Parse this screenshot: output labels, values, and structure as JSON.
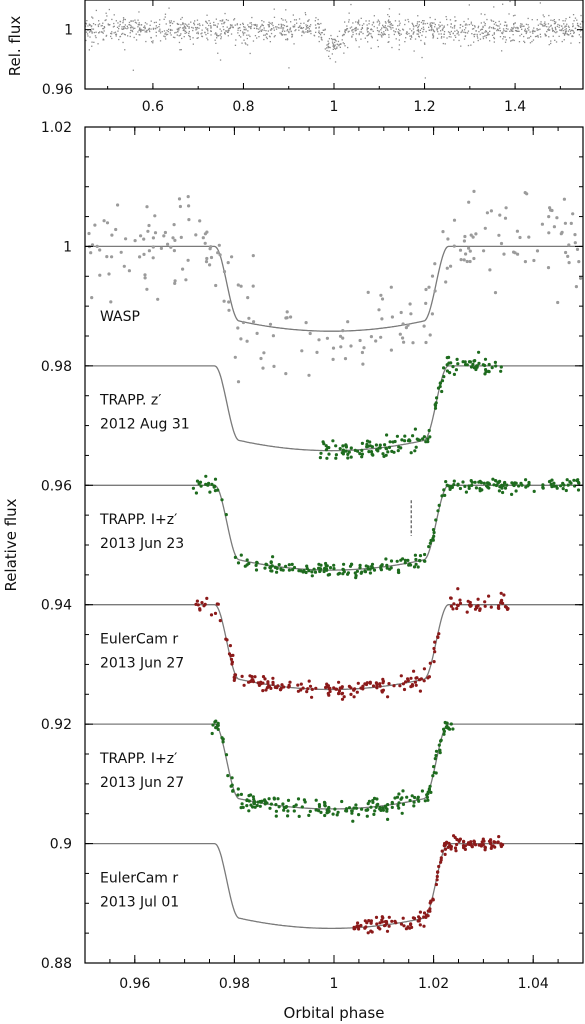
{
  "chart_data": [
    {
      "type": "scatter",
      "panel": "top",
      "title": "",
      "xlabel": "",
      "ylabel": "Rel. flux",
      "xlim": [
        0.45,
        1.55
      ],
      "ylim": [
        0.96,
        1.02
      ],
      "x_ticks": [
        0.6,
        0.8,
        1,
        1.2,
        1.4
      ],
      "x_tick_labels": [
        "0.6",
        "0.8",
        "1",
        "1.2",
        "1.4"
      ],
      "y_ticks": [
        0.96,
        1
      ],
      "y_tick_labels": [
        "0.96",
        "1"
      ],
      "series": [
        {
          "color": "#8c8c8c",
          "baseline": 1.0,
          "scatter": 0.004,
          "transit_start": 0.975,
          "transit_end": 1.025,
          "transit_depth": 0.014
        }
      ]
    },
    {
      "type": "scatter",
      "panel": "bottom",
      "title": "",
      "xlabel": "Orbital phase",
      "ylabel": "Relative flux",
      "xlim": [
        0.95,
        1.05
      ],
      "ylim": [
        0.88,
        1.02
      ],
      "x_ticks": [
        0.96,
        0.98,
        1,
        1.02,
        1.04
      ],
      "x_tick_labels": [
        "0.96",
        "0.98",
        "1",
        "1.02",
        "1.04"
      ],
      "y_ticks": [
        0.88,
        0.9,
        0.92,
        0.94,
        0.96,
        0.98,
        1,
        1.02
      ],
      "y_tick_labels": [
        "0.88",
        "0.9",
        "0.92",
        "0.94",
        "0.96",
        "0.98",
        "1",
        "1.02"
      ],
      "transit_model": {
        "depth": 0.0142,
        "contact_1": 0.976,
        "contact_2": 0.981,
        "contact_3": 1.018,
        "contact_4": 1.023,
        "model_xlim": [
          0.95,
          1.05
        ]
      },
      "series": [
        {
          "label_lines": [
            "WASP"
          ],
          "baseline": 1.0,
          "color": "#9b9b9b",
          "x_range": [
            0.95,
            1.05
          ],
          "scatter": 0.004,
          "n": 230,
          "label_x": 0.951,
          "label_y": 0.9875
        },
        {
          "label_lines": [
            "TRAPP. z′",
            "2012 Aug 31"
          ],
          "baseline": 0.98,
          "color": "#1e6b1e",
          "x_range": [
            0.997,
            1.034
          ],
          "scatter": 0.0008,
          "n": 150,
          "label_x": 0.951,
          "label_y": 0.9735
        },
        {
          "label_lines": [
            "TRAPP. I+z′",
            "2013 Jun 23"
          ],
          "baseline": 0.96,
          "color": "#1e6b1e",
          "x_range": [
            0.971,
            1.05
          ],
          "scatter": 0.0006,
          "n": 270,
          "label_x": 0.951,
          "label_y": 0.9535
        },
        {
          "label_lines": [
            "EulerCam r",
            "2013 Jun 27"
          ],
          "baseline": 0.94,
          "color": "#8b1a1a",
          "x_range": [
            0.972,
            1.035
          ],
          "scatter": 0.0007,
          "n": 210,
          "label_x": 0.951,
          "label_y": 0.9335
        },
        {
          "label_lines": [
            "TRAPP. I+z′",
            "2013 Jun 27"
          ],
          "baseline": 0.92,
          "color": "#1e6b1e",
          "x_range": [
            0.9755,
            1.024
          ],
          "scatter": 0.0008,
          "n": 200,
          "label_x": 0.951,
          "label_y": 0.9135
        },
        {
          "label_lines": [
            "EulerCam r",
            "2013 Jul 01"
          ],
          "baseline": 0.9,
          "color": "#8b1a1a",
          "x_range": [
            1.004,
            1.034
          ],
          "scatter": 0.0006,
          "n": 150,
          "label_x": 0.951,
          "label_y": 0.8935
        }
      ],
      "annotations": [
        {
          "kind": "dashed-vertical",
          "x": 1.0155,
          "y_range": [
            0.9515,
            0.9575
          ]
        }
      ]
    }
  ]
}
